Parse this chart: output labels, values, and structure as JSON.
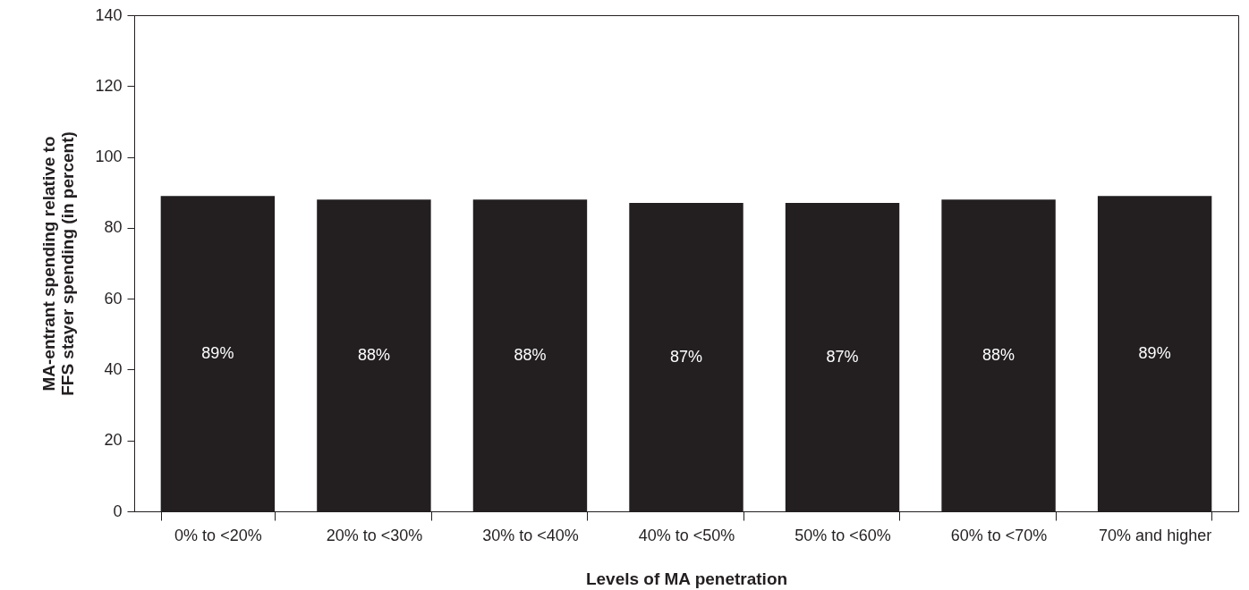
{
  "chart_data": {
    "type": "bar",
    "xlabel": "Levels of MA penetration",
    "ylabel": "MA-entrant spending relative to\nFFS stayer spending (in percent)",
    "categories": [
      "0% to <20%",
      "20% to <30%",
      "30% to <40%",
      "40% to <50%",
      "50% to <60%",
      "60% to <70%",
      "70% and higher"
    ],
    "values": [
      89,
      88,
      88,
      87,
      87,
      88,
      89
    ],
    "value_labels": [
      "89%",
      "88%",
      "88%",
      "87%",
      "87%",
      "88%",
      "89%"
    ],
    "color": "#231f20",
    "ylim": [
      0,
      140
    ],
    "yticks": [
      0,
      20,
      40,
      60,
      80,
      100,
      120,
      140
    ],
    "grid": false
  }
}
